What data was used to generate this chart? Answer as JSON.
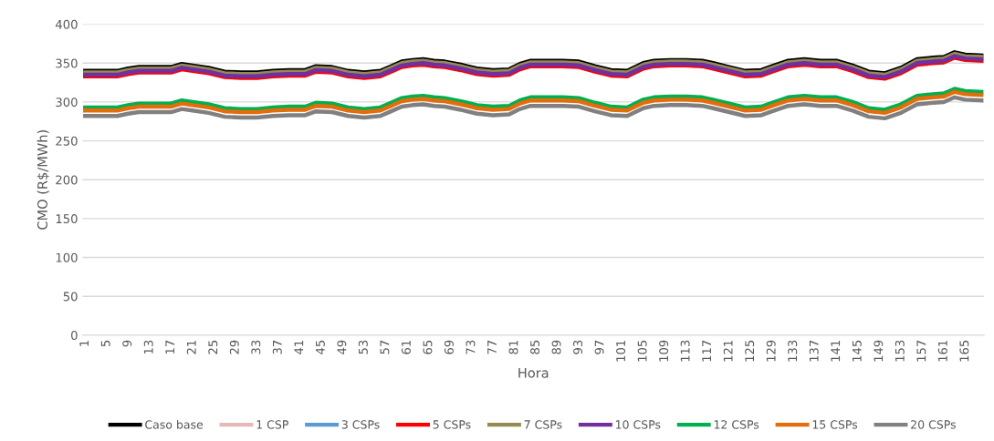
{
  "chart_data": {
    "type": "line",
    "xlabel": "Hora",
    "ylabel": "CMO (R$/MWh)",
    "x": [
      1,
      4,
      7,
      9,
      11,
      14,
      17,
      19,
      21,
      24,
      27,
      30,
      33,
      36,
      39,
      42,
      44,
      47,
      50,
      53,
      56,
      58,
      60,
      62,
      64,
      66,
      68,
      71,
      74,
      77,
      80,
      82,
      84,
      87,
      90,
      93,
      96,
      99,
      102,
      105,
      107,
      110,
      113,
      116,
      118,
      121,
      124,
      127,
      129,
      132,
      135,
      138,
      141,
      144,
      147,
      150,
      153,
      156,
      159,
      161,
      163,
      165,
      168
    ],
    "xlim": [
      0.5,
      168.5
    ],
    "xticks": [
      1,
      5,
      9,
      13,
      17,
      21,
      25,
      29,
      33,
      37,
      41,
      45,
      49,
      53,
      57,
      61,
      65,
      69,
      73,
      77,
      81,
      85,
      89,
      93,
      97,
      101,
      105,
      109,
      113,
      117,
      121,
      125,
      129,
      133,
      137,
      141,
      145,
      149,
      153,
      157,
      161,
      165
    ],
    "ylim": [
      0,
      400
    ],
    "yticks": [
      0,
      50,
      100,
      150,
      200,
      250,
      300,
      350,
      400
    ],
    "grid": "y",
    "legend": "bottom",
    "marker": "none",
    "line_style": "solid",
    "series": [
      {
        "name": "Caso base",
        "color": "#000000",
        "values": [
          340,
          340,
          340,
          343,
          345,
          345,
          345,
          349,
          347,
          344,
          339,
          338,
          338,
          340,
          341,
          341,
          346,
          345,
          340,
          338,
          340,
          346,
          352,
          354,
          355,
          353,
          352,
          348,
          343,
          341,
          342,
          349,
          353,
          353,
          353,
          352,
          346,
          341,
          340,
          350,
          353,
          354,
          354,
          353,
          350,
          345,
          340,
          341,
          346,
          353,
          355,
          353,
          353,
          347,
          339,
          337,
          344,
          355,
          357,
          358,
          364,
          361,
          360
        ]
      },
      {
        "name": "1 CSP",
        "color": "#e6b9b8",
        "values": [
          null,
          null,
          null,
          null,
          null,
          null,
          null,
          null,
          null,
          null,
          null,
          null,
          null,
          null,
          null,
          null,
          null,
          null,
          null,
          null,
          null,
          null,
          null,
          null,
          null,
          null,
          null,
          null,
          null,
          null,
          null,
          null,
          null,
          null,
          null,
          null,
          null,
          null,
          null,
          null,
          null,
          null,
          null,
          null,
          null,
          null,
          null,
          null,
          null,
          null,
          null,
          null,
          null,
          null,
          null,
          null,
          null,
          null,
          null,
          null,
          null,
          null,
          null
        ]
      },
      {
        "name": "3 CSPs",
        "color": "#5b9bd5",
        "values": [
          null,
          null,
          null,
          null,
          null,
          null,
          null,
          null,
          null,
          null,
          null,
          null,
          null,
          null,
          null,
          null,
          null,
          null,
          null,
          null,
          null,
          null,
          null,
          null,
          null,
          null,
          null,
          null,
          null,
          null,
          null,
          null,
          null,
          null,
          null,
          null,
          null,
          null,
          null,
          null,
          null,
          null,
          null,
          null,
          null,
          null,
          null,
          null,
          null,
          null,
          null,
          null,
          null,
          null,
          null,
          null,
          null,
          null,
          null,
          null,
          null,
          null,
          null
        ]
      },
      {
        "name": "5 CSPs",
        "color": "#ff0000",
        "values": [
          333,
          333,
          333,
          336,
          338,
          338,
          338,
          342,
          340,
          337,
          332,
          331,
          331,
          333,
          334,
          334,
          339,
          338,
          333,
          331,
          333,
          339,
          345,
          347,
          348,
          346,
          345,
          341,
          336,
          334,
          335,
          342,
          346,
          346,
          346,
          345,
          339,
          334,
          333,
          343,
          346,
          347,
          347,
          346,
          343,
          338,
          333,
          334,
          339,
          346,
          348,
          346,
          346,
          340,
          332,
          330,
          337,
          348,
          350,
          351,
          357,
          354,
          353
        ]
      },
      {
        "name": "7 CSPs",
        "color": "#948a54",
        "values": [
          338,
          338,
          338,
          341,
          343,
          343,
          343,
          347,
          345,
          342,
          337,
          336,
          336,
          338,
          339,
          339,
          344,
          343,
          338,
          336,
          338,
          344,
          350,
          352,
          353,
          351,
          350,
          346,
          341,
          339,
          340,
          347,
          351,
          351,
          351,
          350,
          344,
          339,
          338,
          348,
          351,
          352,
          352,
          351,
          348,
          343,
          338,
          339,
          344,
          351,
          353,
          351,
          351,
          345,
          337,
          335,
          342,
          353,
          355,
          356,
          362,
          359,
          358
        ]
      },
      {
        "name": "10 CSPs",
        "color": "#7030a0",
        "values": [
          335,
          335,
          335,
          338,
          340,
          340,
          340,
          344,
          342,
          339,
          334,
          333,
          333,
          335,
          336,
          336,
          341,
          340,
          335,
          333,
          335,
          341,
          347,
          349,
          350,
          348,
          347,
          343,
          338,
          336,
          337,
          344,
          348,
          348,
          348,
          347,
          341,
          336,
          335,
          345,
          348,
          349,
          349,
          348,
          345,
          340,
          335,
          336,
          341,
          348,
          350,
          348,
          348,
          342,
          334,
          332,
          339,
          350,
          352,
          353,
          359,
          356,
          355
        ]
      },
      {
        "name": "12 CSPs",
        "color": "#00b050",
        "values": [
          293,
          293,
          293,
          296,
          298,
          298,
          298,
          302,
          300,
          297,
          292,
          291,
          291,
          293,
          294,
          294,
          299,
          298,
          293,
          291,
          293,
          299,
          305,
          307,
          308,
          306,
          305,
          301,
          296,
          294,
          295,
          302,
          306,
          306,
          306,
          305,
          299,
          294,
          293,
          303,
          306,
          307,
          307,
          306,
          303,
          298,
          293,
          294,
          299,
          306,
          308,
          306,
          306,
          300,
          292,
          290,
          297,
          308,
          310,
          311,
          317,
          314,
          313
        ]
      },
      {
        "name": "15 CSPs",
        "color": "#e46c0a",
        "values": [
          289,
          289,
          289,
          292,
          294,
          294,
          294,
          298,
          296,
          293,
          288,
          287,
          287,
          289,
          290,
          290,
          295,
          294,
          289,
          287,
          289,
          295,
          301,
          303,
          304,
          302,
          301,
          297,
          292,
          290,
          291,
          298,
          302,
          302,
          302,
          301,
          295,
          290,
          289,
          299,
          302,
          303,
          303,
          302,
          299,
          294,
          289,
          290,
          295,
          302,
          304,
          302,
          302,
          296,
          288,
          286,
          293,
          304,
          306,
          307,
          313,
          310,
          309
        ]
      },
      {
        "name": "20 CSPs",
        "color": "#808080",
        "values": [
          282,
          282,
          282,
          285,
          287,
          287,
          287,
          291,
          289,
          286,
          281,
          280,
          280,
          282,
          283,
          283,
          288,
          287,
          282,
          280,
          282,
          288,
          294,
          296,
          297,
          295,
          294,
          290,
          285,
          283,
          284,
          291,
          295,
          295,
          295,
          294,
          288,
          283,
          282,
          292,
          295,
          296,
          296,
          295,
          292,
          287,
          282,
          283,
          288,
          295,
          297,
          295,
          295,
          289,
          281,
          279,
          286,
          297,
          299,
          300,
          306,
          303,
          302
        ]
      }
    ]
  }
}
